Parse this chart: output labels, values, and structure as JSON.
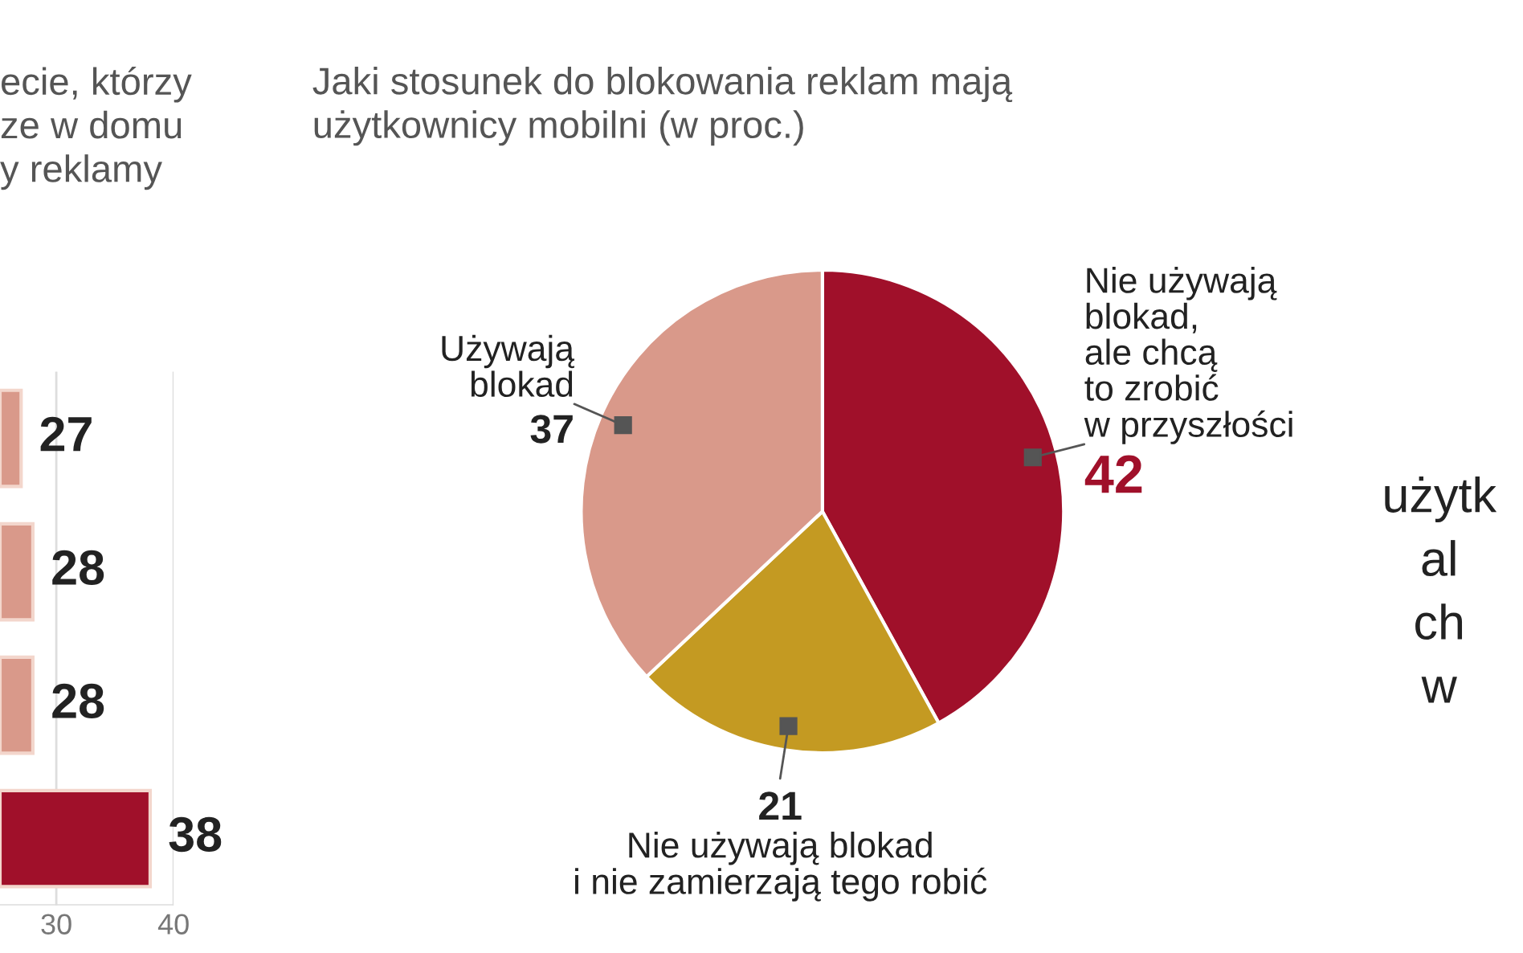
{
  "chart_data": [
    {
      "type": "bar",
      "orientation": "horizontal",
      "title": "ecie, którzy\nze w domu\ny reklamy",
      "categories": [
        null,
        null,
        null,
        null
      ],
      "values": [
        27,
        28,
        28,
        38
      ],
      "colors": [
        "#d9998a",
        "#d9998a",
        "#d9998a",
        "#a0102a"
      ],
      "data_labels": true,
      "xlim": [
        25.2,
        40
      ],
      "xticks": [
        30,
        40
      ],
      "grid": "x",
      "tick_labels": "x"
    },
    {
      "type": "pie",
      "title": "Jaki stosunek do blokowania reklam mają\nużytkownicy mobilni (w proc.)",
      "categories": [
        "Nie używają\nblokad,\nale chcą\nto zrobić\nw przyszłości",
        "Nie używają blokad\ni nie zamierzają tego robić",
        "Używają\nblokad"
      ],
      "values": [
        42,
        21,
        37
      ],
      "colors": [
        "#a0102a",
        "#c49a22",
        "#d9998a"
      ],
      "data_labels": true
    },
    {
      "type": "other",
      "annotations": [
        "użytk\nal\nch\nw"
      ]
    }
  ]
}
